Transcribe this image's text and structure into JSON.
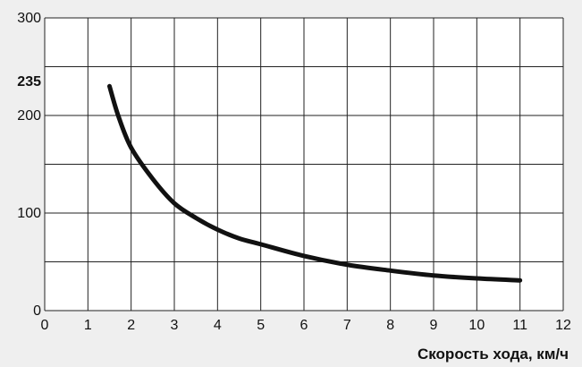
{
  "chart_data": {
    "type": "line",
    "title": "",
    "xlabel": "Скорость хода, км/ч",
    "ylabel": "",
    "xlim": [
      0,
      12
    ],
    "ylim": [
      0,
      300
    ],
    "x_ticks": [
      "0",
      "1",
      "2",
      "3",
      "4",
      "5",
      "6",
      "7",
      "8",
      "9",
      "10",
      "11",
      "12"
    ],
    "y_ticks": [
      "0",
      "100",
      "200",
      "300"
    ],
    "y_gridlines": [
      0,
      50,
      100,
      150,
      200,
      250,
      300
    ],
    "highlight_y_tick": "235",
    "grid": true,
    "colors": {
      "background": "#efefef",
      "plot_area": "#ffffff",
      "line": "#111111",
      "grid": "#222222"
    },
    "series": [
      {
        "x": [
          1.5,
          1.7,
          2.0,
          2.5,
          3.0,
          3.5,
          4.0,
          4.5,
          5.0,
          6.0,
          7.0,
          8.0,
          9.0,
          10.0,
          11.0
        ],
        "y": [
          230,
          200,
          167,
          135,
          110,
          95,
          83,
          74,
          68,
          56,
          47,
          41,
          36,
          33,
          31
        ]
      }
    ]
  }
}
